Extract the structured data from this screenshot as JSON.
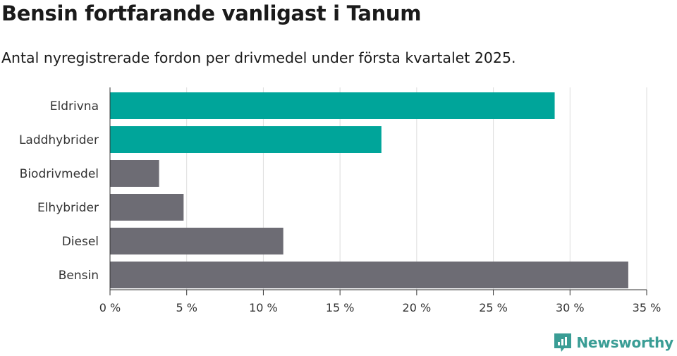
{
  "title": "Bensin fortfarande vanligast i Tanum",
  "subtitle": "Antal nyregistrerade fordon per drivmedel under första kvartalet 2025.",
  "brand": {
    "name": "Newsworthy",
    "color": "#3a9d95"
  },
  "colors": {
    "electric": "#00a59a",
    "other": "#6d6c74",
    "grid": "#dddddd"
  },
  "chart_data": {
    "type": "bar",
    "orientation": "horizontal",
    "categories": [
      "Eldrivna",
      "Laddhybrider",
      "Biodrivmedel",
      "Elhybrider",
      "Diesel",
      "Bensin"
    ],
    "values": [
      29.0,
      17.7,
      3.2,
      4.8,
      11.3,
      33.8
    ],
    "bar_colors": [
      "#00a59a",
      "#00a59a",
      "#6d6c74",
      "#6d6c74",
      "#6d6c74",
      "#6d6c74"
    ],
    "xlim": [
      0,
      35
    ],
    "xticks": [
      0,
      5,
      10,
      15,
      20,
      25,
      30,
      35
    ],
    "xtick_labels": [
      "0 %",
      "5 %",
      "10 %",
      "15 %",
      "20 %",
      "25 %",
      "30 %",
      "35 %"
    ],
    "grid": true,
    "xlabel": "",
    "ylabel": ""
  }
}
